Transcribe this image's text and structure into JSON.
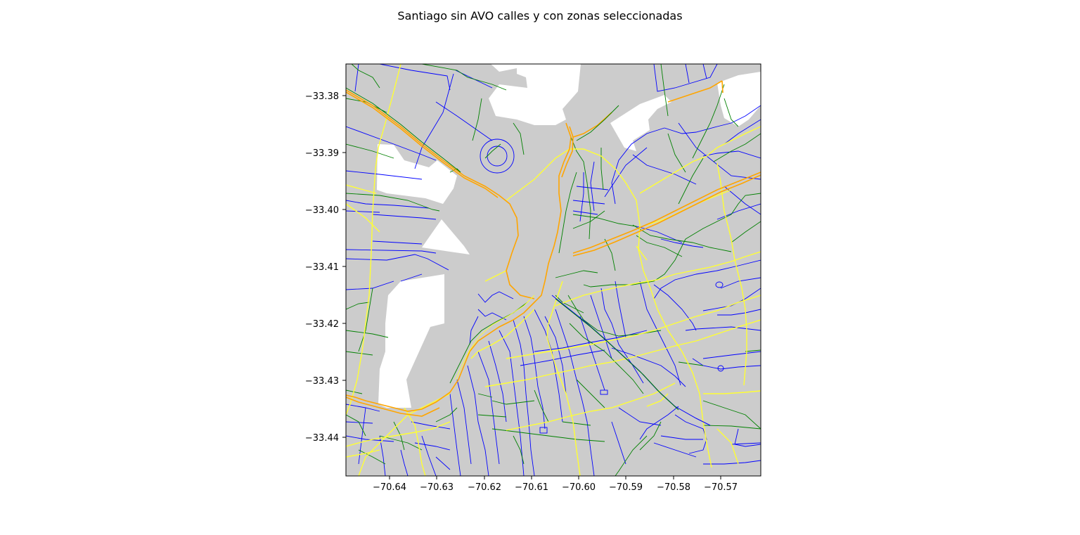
{
  "figure": {
    "title": "Santiago sin AVO calles y con zonas seleccionadas"
  },
  "axes": {
    "x_ticks": [
      "−70.64",
      "−70.63",
      "−70.62",
      "−70.61",
      "−70.60",
      "−70.59",
      "−70.58",
      "−70.57"
    ],
    "y_ticks": [
      "−33.38",
      "−33.39",
      "−33.40",
      "−33.41",
      "−33.42",
      "−33.43",
      "−33.44"
    ]
  },
  "colors": {
    "land": "#cccccc",
    "background": "#ffffff",
    "street_local": "#0000ff",
    "street_secondary": "#008000",
    "street_primary": "#ffff33",
    "street_highway": "#ffa500"
  }
}
